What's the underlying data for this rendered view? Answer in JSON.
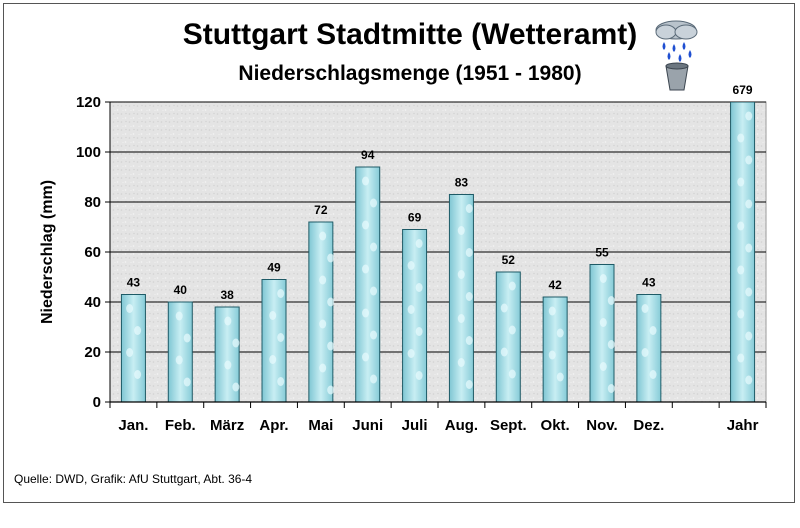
{
  "source": "Quelle: DWD, Grafik: AfU Stuttgart, Abt. 36-4",
  "icon": "rain-cloud-bucket-icon",
  "colors": {
    "bar": "#a9dde6",
    "bar_edge": "#1e5a66",
    "plot_bg": "#e6e6e6"
  },
  "chart_data": {
    "type": "bar",
    "title": "Stuttgart Stadtmitte (Wetteramt)",
    "subtitle": "Niederschlagsmenge (1951 - 1980)",
    "ylabel": "Niederschlag (mm)",
    "xlabel": "",
    "ylim": [
      0,
      120
    ],
    "yticks": [
      0,
      20,
      40,
      60,
      80,
      100,
      120
    ],
    "grid": true,
    "categories": [
      "Jan.",
      "Feb.",
      "März",
      "Apr.",
      "Mai",
      "Juni",
      "Juli",
      "Aug.",
      "Sept.",
      "Okt.",
      "Nov.",
      "Dez.",
      "",
      "Jahr"
    ],
    "values": [
      43,
      40,
      38,
      49,
      72,
      94,
      69,
      83,
      52,
      42,
      55,
      43,
      null,
      679
    ],
    "value_labels": [
      "43",
      "40",
      "38",
      "49",
      "72",
      "94",
      "69",
      "83",
      "52",
      "42",
      "55",
      "43",
      "",
      "679"
    ]
  }
}
